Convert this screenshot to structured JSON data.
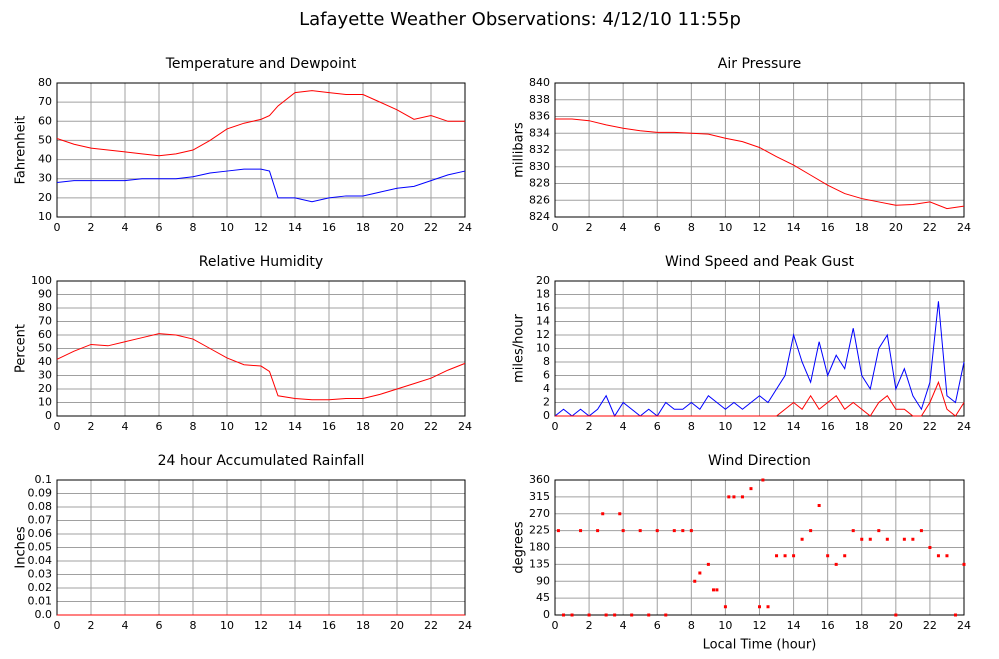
{
  "title": "Lafayette Weather Observations: 4/12/10 11:55p",
  "chart_data": [
    {
      "type": "line",
      "title": "Temperature and Dewpoint",
      "ylabel": "Fahrenheit",
      "x": [
        0,
        1,
        2,
        3,
        4,
        5,
        6,
        7,
        8,
        9,
        10,
        11,
        12,
        12.5,
        13,
        14,
        15,
        16,
        17,
        18,
        19,
        20,
        21,
        22,
        23,
        24
      ],
      "series": [
        {
          "color": "#ff0000",
          "values": [
            51,
            48,
            46,
            45,
            44,
            43,
            42,
            43,
            45,
            50,
            56,
            59,
            61,
            63,
            68,
            75,
            76,
            75,
            74,
            74,
            70,
            66,
            61,
            63,
            60,
            60
          ]
        },
        {
          "color": "#0000ff",
          "values": [
            28,
            29,
            29,
            29,
            29,
            30,
            30,
            30,
            31,
            33,
            34,
            35,
            35,
            34,
            20,
            20,
            18,
            20,
            21,
            21,
            23,
            25,
            26,
            29,
            32,
            34
          ]
        }
      ],
      "xlim": [
        0,
        24
      ],
      "xticks": [
        0,
        2,
        4,
        6,
        8,
        10,
        12,
        14,
        16,
        18,
        20,
        22,
        24
      ],
      "ylim": [
        10,
        80
      ],
      "yticks": [
        10,
        20,
        30,
        40,
        50,
        60,
        70,
        80
      ],
      "grid": true
    },
    {
      "type": "line",
      "title": "Air Pressure",
      "ylabel": "millibars",
      "x": [
        0,
        1,
        2,
        3,
        4,
        5,
        6,
        7,
        8,
        9,
        10,
        11,
        12,
        13,
        14,
        15,
        16,
        17,
        18,
        19,
        20,
        21,
        22,
        23,
        24
      ],
      "series": [
        {
          "color": "#ff0000",
          "values": [
            835.7,
            835.7,
            835.5,
            835,
            834.6,
            834.3,
            834.1,
            834.1,
            834,
            833.9,
            833.4,
            833,
            832.3,
            831.2,
            830.2,
            829,
            827.8,
            826.8,
            826.2,
            825.8,
            825.4,
            825.5,
            825.8,
            825,
            825.3
          ]
        }
      ],
      "xlim": [
        0,
        24
      ],
      "xticks": [
        0,
        2,
        4,
        6,
        8,
        10,
        12,
        14,
        16,
        18,
        20,
        22,
        24
      ],
      "ylim": [
        824,
        840
      ],
      "yticks": [
        824,
        826,
        828,
        830,
        832,
        834,
        836,
        838,
        840
      ],
      "grid": true
    },
    {
      "type": "line",
      "title": "Relative Humidity",
      "ylabel": "Percent",
      "x": [
        0,
        1,
        2,
        3,
        4,
        5,
        6,
        7,
        8,
        9,
        10,
        11,
        12,
        12.5,
        13,
        14,
        15,
        16,
        17,
        18,
        19,
        20,
        21,
        22,
        23,
        24
      ],
      "series": [
        {
          "color": "#ff0000",
          "values": [
            42,
            48,
            53,
            52,
            55,
            58,
            61,
            60,
            57,
            50,
            43,
            38,
            37,
            33,
            15,
            13,
            12,
            12,
            13,
            13,
            16,
            20,
            24,
            28,
            34,
            39
          ]
        }
      ],
      "xlim": [
        0,
        24
      ],
      "xticks": [
        0,
        2,
        4,
        6,
        8,
        10,
        12,
        14,
        16,
        18,
        20,
        22,
        24
      ],
      "ylim": [
        0,
        100
      ],
      "yticks": [
        0,
        10,
        20,
        30,
        40,
        50,
        60,
        70,
        80,
        90,
        100
      ],
      "grid": true
    },
    {
      "type": "line",
      "title": "Wind Speed and Peak Gust",
      "ylabel": "miles/hour",
      "x": [
        0,
        0.5,
        1,
        1.5,
        2,
        2.5,
        3,
        3.5,
        4,
        4.5,
        5,
        5.5,
        6,
        6.5,
        7,
        7.5,
        8,
        8.5,
        9,
        9.5,
        10,
        10.5,
        11,
        11.5,
        12,
        12.5,
        13,
        13.5,
        14,
        14.5,
        15,
        15.5,
        16,
        16.5,
        17,
        17.5,
        18,
        18.5,
        19,
        19.5,
        20,
        20.5,
        21,
        21.5,
        22,
        22.5,
        23,
        23.5,
        24
      ],
      "series": [
        {
          "color": "#0000ff",
          "values": [
            0,
            1,
            0,
            1,
            0,
            1,
            3,
            0,
            2,
            1,
            0,
            1,
            0,
            2,
            1,
            1,
            2,
            1,
            3,
            2,
            1,
            2,
            1,
            2,
            3,
            2,
            4,
            6,
            12,
            8,
            5,
            11,
            6,
            9,
            7,
            13,
            6,
            4,
            10,
            12,
            4,
            7,
            3,
            1,
            5,
            17,
            3,
            2,
            8
          ]
        },
        {
          "color": "#ff0000",
          "values": [
            0,
            0,
            0,
            0,
            0,
            0,
            0,
            0,
            0,
            0,
            0,
            0,
            0,
            0,
            0,
            0,
            0,
            0,
            0,
            0,
            0,
            0,
            0,
            0,
            0,
            0,
            0,
            1,
            2,
            1,
            3,
            1,
            2,
            3,
            1,
            2,
            1,
            0,
            2,
            3,
            1,
            1,
            0,
            0,
            2,
            5,
            1,
            0,
            2
          ]
        }
      ],
      "xlim": [
        0,
        24
      ],
      "xticks": [
        0,
        2,
        4,
        6,
        8,
        10,
        12,
        14,
        16,
        18,
        20,
        22,
        24
      ],
      "ylim": [
        0,
        20
      ],
      "yticks": [
        0,
        2,
        4,
        6,
        8,
        10,
        12,
        14,
        16,
        18,
        20
      ],
      "grid": true
    },
    {
      "type": "line",
      "title": "24 hour Accumulated Rainfall",
      "ylabel": "Inches",
      "x": [
        0,
        24
      ],
      "series": [
        {
          "color": "#ff0000",
          "values": [
            0,
            0
          ]
        }
      ],
      "xlim": [
        0,
        24
      ],
      "xticks": [
        0,
        2,
        4,
        6,
        8,
        10,
        12,
        14,
        16,
        18,
        20,
        22,
        24
      ],
      "ylim": [
        0,
        0.1
      ],
      "yticks": [
        {
          "value": 0,
          "label": "0.0"
        },
        0.01,
        0.02,
        0.03,
        0.04,
        0.05,
        0.06,
        0.07,
        0.08,
        0.09,
        0.1
      ],
      "grid": true
    },
    {
      "type": "scatter",
      "title": "Wind Direction",
      "ylabel": "degrees",
      "xlabel": "Local Time (hour)",
      "x": [
        0.2,
        0.5,
        1,
        1.5,
        2,
        2.5,
        2.8,
        3,
        3.5,
        3.8,
        4,
        4.5,
        5,
        5.5,
        6,
        6.5,
        7,
        7.5,
        8,
        8.2,
        8.5,
        9,
        9.3,
        9.5,
        10,
        10.2,
        10.5,
        11,
        11.5,
        12,
        12.2,
        12.5,
        13,
        13.5,
        14,
        14.5,
        15,
        15.5,
        16,
        16.5,
        17,
        17.5,
        18,
        18.5,
        19,
        19.5,
        20,
        20.5,
        21,
        21.5,
        22,
        22.5,
        23,
        23.5,
        24
      ],
      "series": [
        {
          "color": "#ff0000",
          "values": [
            225,
            0,
            0,
            225,
            0,
            225,
            270,
            0,
            0,
            270,
            225,
            0,
            225,
            0,
            225,
            0,
            225,
            225,
            225,
            90,
            112,
            135,
            67,
            67,
            22,
            315,
            315,
            315,
            337,
            22,
            360,
            22,
            158,
            158,
            158,
            202,
            225,
            292,
            158,
            135,
            158,
            225,
            202,
            202,
            225,
            202,
            0,
            202,
            202,
            225,
            180,
            158,
            158,
            0,
            135
          ]
        }
      ],
      "xlim": [
        0,
        24
      ],
      "xticks": [
        0,
        2,
        4,
        6,
        8,
        10,
        12,
        14,
        16,
        18,
        20,
        22,
        24
      ],
      "ylim": [
        0,
        360
      ],
      "yticks": [
        0,
        45,
        90,
        135,
        180,
        225,
        270,
        315,
        360
      ],
      "grid": true
    }
  ]
}
